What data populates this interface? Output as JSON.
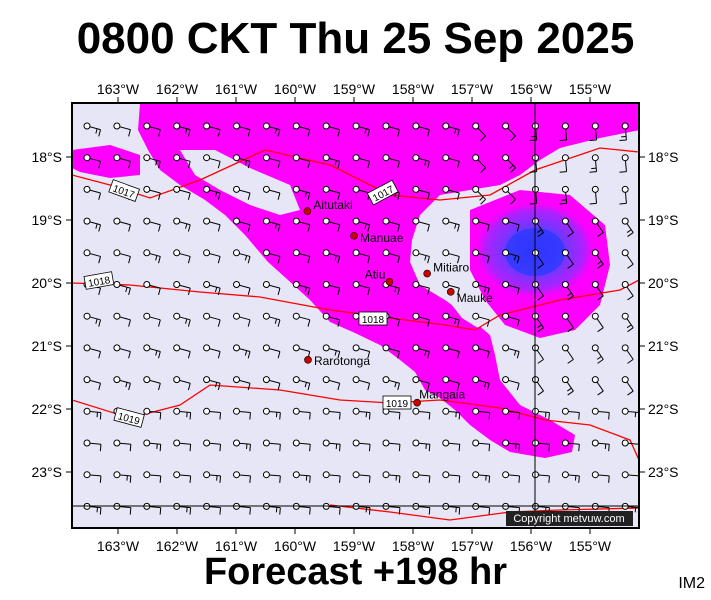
{
  "header": {
    "title": "0800 CKT Thu 25 Sep 2025"
  },
  "footer": {
    "forecast": "Forecast +198 hr",
    "tag": "IM2"
  },
  "copyright": "Copyright metvuw.com",
  "colors": {
    "background": "#e6e6f6",
    "precip": "#ff00ff",
    "precip_heavy": "#3030ff",
    "isobar": "#ff0000",
    "island": "#cc0000"
  },
  "map": {
    "lon_labels": [
      "163°W",
      "162°W",
      "161°W",
      "160°W",
      "159°W",
      "158°W",
      "157°W",
      "156°W",
      "155°W"
    ],
    "lat_labels": [
      "18°S",
      "19°S",
      "20°S",
      "21°S",
      "22°S",
      "23°S"
    ],
    "islands": [
      {
        "name": "Aitutaki",
        "lon": -159.79,
        "lat": -18.86
      },
      {
        "name": "Manuae",
        "lon": -159.0,
        "lat": -19.25
      },
      {
        "name": "Atiu",
        "lon": -158.4,
        "lat": -19.98
      },
      {
        "name": "Mitiaro",
        "lon": -157.76,
        "lat": -19.85
      },
      {
        "name": "Mauke",
        "lon": -157.36,
        "lat": -20.14
      },
      {
        "name": "Rarotonga",
        "lon": -159.78,
        "lat": -21.22
      },
      {
        "name": "Mangaia",
        "lon": -157.93,
        "lat": -21.9
      }
    ],
    "isobar_labels": [
      "1017",
      "1017",
      "1018",
      "1018",
      "1019",
      "1019"
    ]
  }
}
